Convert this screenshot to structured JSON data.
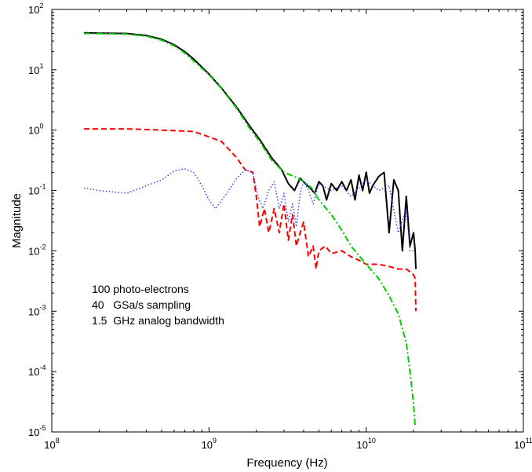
{
  "chart_data": {
    "type": "line",
    "xlabel": "Frequency (Hz)",
    "ylabel": "Magnitude",
    "x_scale": "log",
    "y_scale": "log",
    "xlim": [
      100000000.0,
      100000000000.0
    ],
    "ylim": [
      1e-05,
      100
    ],
    "grid": false,
    "x_ticks": [
      {
        "base": "10",
        "exp": "8",
        "value": 100000000.0
      },
      {
        "base": "10",
        "exp": "9",
        "value": 1000000000.0
      },
      {
        "base": "10",
        "exp": "10",
        "value": 10000000000.0
      },
      {
        "base": "10",
        "exp": "11",
        "value": 100000000000.0
      }
    ],
    "y_ticks": [
      {
        "base": "10",
        "exp": "-5",
        "value": 1e-05
      },
      {
        "base": "10",
        "exp": "-4",
        "value": 0.0001
      },
      {
        "base": "10",
        "exp": "-3",
        "value": 0.001
      },
      {
        "base": "10",
        "exp": "-2",
        "value": 0.01
      },
      {
        "base": "10",
        "exp": "-1",
        "value": 0.1
      },
      {
        "base": "10",
        "exp": "0",
        "value": 1
      },
      {
        "base": "10",
        "exp": "1",
        "value": 10
      },
      {
        "base": "10",
        "exp": "2",
        "value": 100
      }
    ],
    "annotations": [
      "100 photo-electrons",
      "40   GSa/s sampling",
      "1.5  GHz analog bandwidth"
    ],
    "series": [
      {
        "color": "#000000",
        "style": "solid",
        "x": [
          160000000.0,
          200000000.0,
          300000000.0,
          400000000.0,
          500000000.0,
          600000000.0,
          700000000.0,
          800000000.0,
          1000000000.0,
          1200000000.0,
          1500000000.0,
          1800000000.0,
          2100000000.0,
          2500000000.0,
          2900000000.0,
          3200000000.0,
          3500000000.0,
          3800000000.0,
          4100000000.0,
          4400000000.0,
          4700000000.0,
          5000000000.0,
          5300000000.0,
          5600000000.0,
          6000000000.0,
          6500000000.0,
          7000000000.0,
          7500000000.0,
          8000000000.0,
          8500000000.0,
          9000000000.0,
          9500000000.0,
          10000000000.0,
          10500000000.0,
          11000000000.0,
          12000000000.0,
          13000000000.0,
          14000000000.0,
          15000000000.0,
          16000000000.0,
          17000000000.0,
          18000000000.0,
          19000000000.0,
          20000000000.0,
          20500000000.0,
          20700000000.0
        ],
        "y": [
          41,
          40.5,
          40,
          37,
          32,
          26,
          20,
          15,
          8.5,
          5.0,
          2.4,
          1.2,
          0.7,
          0.35,
          0.22,
          0.13,
          0.1,
          0.16,
          0.13,
          0.11,
          0.09,
          0.14,
          0.12,
          0.07,
          0.13,
          0.1,
          0.14,
          0.1,
          0.15,
          0.07,
          0.18,
          0.1,
          0.2,
          0.09,
          0.12,
          0.17,
          0.2,
          0.02,
          0.15,
          0.1,
          0.01,
          0.08,
          0.012,
          0.02,
          0.01,
          0.005
        ]
      },
      {
        "color": "#ff0000",
        "style": "dashed",
        "x": [
          160000000.0,
          300000000.0,
          500000000.0,
          800000000.0,
          1200000000.0,
          1500000000.0,
          1700000000.0,
          1900000000.0,
          2000000000.0,
          2100000000.0,
          2250000000.0,
          2400000000.0,
          2600000000.0,
          2800000000.0,
          3000000000.0,
          3200000000.0,
          3400000000.0,
          3600000000.0,
          3800000000.0,
          4000000000.0,
          4300000000.0,
          4600000000.0,
          4800000000.0,
          5000000000.0,
          5500000000.0,
          6000000000.0,
          7000000000.0,
          8000000000.0,
          9000000000.0,
          10000000000.0,
          12000000000.0,
          14000000000.0,
          16000000000.0,
          18000000000.0,
          19000000000.0,
          20000000000.0,
          20500000000.0,
          20700000000.0
        ],
        "y": [
          1.05,
          1.05,
          1.0,
          0.95,
          0.65,
          0.35,
          0.22,
          0.2,
          0.08,
          0.025,
          0.05,
          0.02,
          0.05,
          0.02,
          0.06,
          0.015,
          0.04,
          0.012,
          0.02,
          0.03,
          0.008,
          0.012,
          0.005,
          0.01,
          0.012,
          0.009,
          0.01,
          0.008,
          0.007,
          0.006,
          0.006,
          0.0055,
          0.005,
          0.005,
          0.0045,
          0.004,
          0.0035,
          0.001
        ]
      },
      {
        "color": "#00cc00",
        "style": "dashdot",
        "x": [
          160000000.0,
          200000000.0,
          300000000.0,
          400000000.0,
          500000000.0,
          600000000.0,
          700000000.0,
          800000000.0,
          1000000000.0,
          1200000000.0,
          1500000000.0,
          1800000000.0,
          2100000000.0,
          2500000000.0,
          3000000000.0,
          3500000000.0,
          4000000000.0,
          4500000000.0,
          5000000000.0,
          6000000000.0,
          7000000000.0,
          8000000000.0,
          10000000000.0,
          12000000000.0,
          14000000000.0,
          16000000000.0,
          18000000000.0,
          19000000000.0,
          20000000000.0,
          20500000000.0
        ],
        "y": [
          40,
          39.8,
          39,
          36,
          31,
          25,
          19,
          14,
          8.3,
          4.9,
          2.3,
          1.1,
          0.65,
          0.32,
          0.2,
          0.17,
          0.14,
          0.11,
          0.07,
          0.04,
          0.022,
          0.012,
          0.006,
          0.0035,
          0.0018,
          0.0009,
          0.0003,
          0.0001,
          3e-05,
          1.2e-05
        ]
      },
      {
        "color": "#3333ff",
        "style": "dotted",
        "x": [
          160000000.0,
          200000000.0,
          300000000.0,
          400000000.0,
          500000000.0,
          600000000.0,
          700000000.0,
          800000000.0,
          900000000.0,
          1000000000.0,
          1100000000.0,
          1300000000.0,
          1500000000.0,
          1700000000.0,
          1900000000.0,
          2050000000.0,
          2200000000.0,
          2400000000.0,
          2600000000.0,
          2800000000.0,
          3000000000.0,
          3200000000.0,
          3400000000.0,
          3600000000.0,
          3800000000.0,
          4000000000.0,
          4300000000.0,
          4600000000.0,
          5000000000.0,
          6000000000.0,
          7000000000.0,
          8000000000.0,
          10000000000.0,
          12000000000.0,
          14000000000.0,
          16000000000.0,
          18000000000.0,
          19000000000.0,
          20000000000.0
        ],
        "y": [
          0.11,
          0.1,
          0.09,
          0.12,
          0.15,
          0.21,
          0.23,
          0.2,
          0.12,
          0.07,
          0.05,
          0.09,
          0.16,
          0.22,
          0.2,
          0.08,
          0.05,
          0.1,
          0.14,
          0.05,
          0.09,
          0.03,
          0.06,
          0.025,
          0.09,
          0.14,
          0.1,
          0.06,
          0.13,
          0.1,
          0.12,
          0.08,
          0.15,
          0.1,
          0.12,
          0.02,
          0.05,
          0.01,
          0.01
        ]
      }
    ]
  }
}
